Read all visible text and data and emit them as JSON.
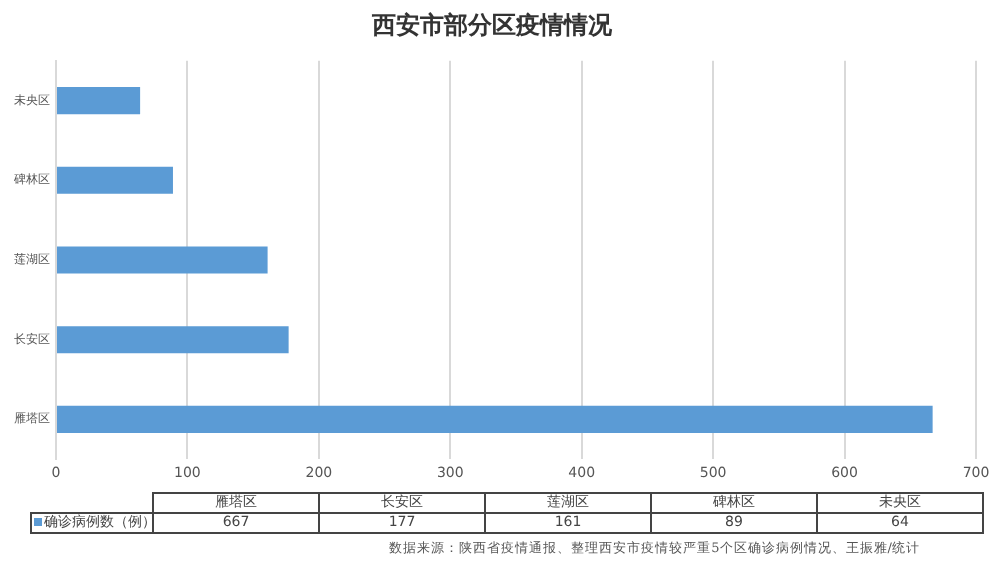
{
  "chart_data": [
    {
      "type": "bar",
      "orientation": "horizontal",
      "title": "西安市部分区疫情情况",
      "categories": [
        "未央区",
        "碑林区",
        "莲湖区",
        "长安区",
        "雁塔区"
      ],
      "series": [
        {
          "color": "#5b9bd5",
          "values": [
            64,
            89,
            161,
            177,
            667
          ]
        }
      ],
      "xlim": [
        0,
        700
      ],
      "xticks": [
        0,
        100,
        200,
        300,
        400,
        500,
        600,
        700
      ],
      "grid": "x"
    },
    {
      "type": "other",
      "categories": [
        "雁塔区",
        "长安区",
        "莲湖区",
        "碑林区",
        "未央区"
      ],
      "series": [
        {
          "name": "确诊病例数（例）",
          "color": "#5b9bd5",
          "values": [
            667,
            177,
            161,
            89,
            64
          ]
        }
      ],
      "data_labels": true,
      "legend": "left",
      "annotations": [
        "数据来源：陕西省疫情通报、整理西安市疫情较严重5个区确诊病例情况、王振雅/统计"
      ]
    }
  ]
}
